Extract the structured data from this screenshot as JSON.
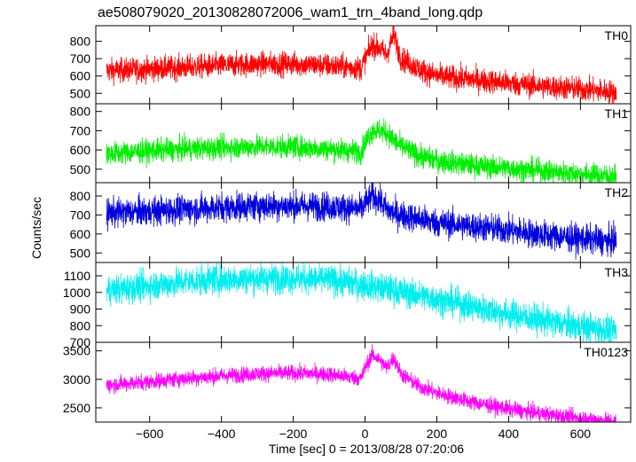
{
  "title": "ae508079020_20130828072006_wam1_trn_4band_long.qdp",
  "xlabel": "Time [sec] 0 = 2013/08/28 07:20:06",
  "ylabel": "Counts/sec",
  "chart_data": {
    "type": "line",
    "title": "ae508079020_20130828072006_wam1_trn_4band_long.qdp",
    "xlabel": "Time [sec] 0 = 2013/08/28 07:20:06",
    "ylabel": "Counts/sec",
    "xlim": [
      -750,
      740
    ],
    "xticks": [
      -600,
      -400,
      -200,
      0,
      200,
      400,
      600
    ],
    "grid": false,
    "panels": [
      {
        "name": "TH0",
        "color": "#ff0000",
        "ylim": [
          440,
          890
        ],
        "yticks": [
          500,
          600,
          700,
          800
        ],
        "x": [
          -720,
          -600,
          -500,
          -400,
          -300,
          -200,
          -100,
          -40,
          -10,
          0,
          20,
          40,
          60,
          80,
          100,
          120,
          150,
          200,
          300,
          400,
          500,
          600,
          700
        ],
        "y": [
          630,
          640,
          650,
          660,
          670,
          670,
          660,
          650,
          645,
          700,
          780,
          760,
          720,
          840,
          700,
          680,
          640,
          600,
          580,
          560,
          540,
          525,
          505
        ],
        "noise": 35
      },
      {
        "name": "TH1",
        "color": "#00ee00",
        "ylim": [
          430,
          840
        ],
        "yticks": [
          500,
          600,
          700,
          800
        ],
        "x": [
          -720,
          -600,
          -500,
          -400,
          -300,
          -200,
          -100,
          -40,
          -10,
          0,
          20,
          40,
          60,
          80,
          100,
          120,
          150,
          200,
          300,
          400,
          500,
          600,
          700
        ],
        "y": [
          580,
          595,
          605,
          612,
          618,
          616,
          605,
          595,
          590,
          640,
          700,
          700,
          690,
          650,
          620,
          600,
          570,
          545,
          520,
          505,
          490,
          475,
          462
        ],
        "noise": 30
      },
      {
        "name": "TH2",
        "color": "#0000dd",
        "ylim": [
          450,
          870
        ],
        "yticks": [
          500,
          600,
          700,
          800
        ],
        "x": [
          -720,
          -600,
          -500,
          -400,
          -300,
          -200,
          -100,
          -40,
          -10,
          0,
          20,
          40,
          60,
          80,
          100,
          150,
          200,
          300,
          400,
          500,
          600,
          700
        ],
        "y": [
          710,
          720,
          730,
          740,
          748,
          748,
          745,
          735,
          730,
          760,
          800,
          780,
          730,
          710,
          700,
          680,
          660,
          640,
          620,
          595,
          575,
          560
        ],
        "noise": 38
      },
      {
        "name": "TH3",
        "color": "#00eeee",
        "ylim": [
          700,
          1180
        ],
        "yticks": [
          700,
          800,
          900,
          1000,
          1100
        ],
        "x": [
          -720,
          -600,
          -500,
          -400,
          -300,
          -200,
          -100,
          0,
          100,
          200,
          300,
          400,
          500,
          600,
          700
        ],
        "y": [
          1010,
          1040,
          1065,
          1080,
          1085,
          1085,
          1075,
          1045,
          1005,
          960,
          915,
          870,
          830,
          795,
          765
        ],
        "noise": 45
      },
      {
        "name": "TH0123",
        "color": "#ff00ff",
        "ylim": [
          2250,
          3650
        ],
        "yticks": [
          2500,
          3000,
          3500
        ],
        "x": [
          -720,
          -600,
          -500,
          -400,
          -300,
          -200,
          -100,
          -40,
          -10,
          0,
          20,
          40,
          60,
          80,
          100,
          150,
          200,
          300,
          400,
          500,
          600,
          700
        ],
        "y": [
          2900,
          2960,
          3020,
          3060,
          3100,
          3110,
          3090,
          3040,
          3020,
          3200,
          3430,
          3350,
          3200,
          3380,
          3100,
          2880,
          2760,
          2600,
          2480,
          2390,
          2320,
          2260
        ],
        "noise": 70
      }
    ]
  }
}
